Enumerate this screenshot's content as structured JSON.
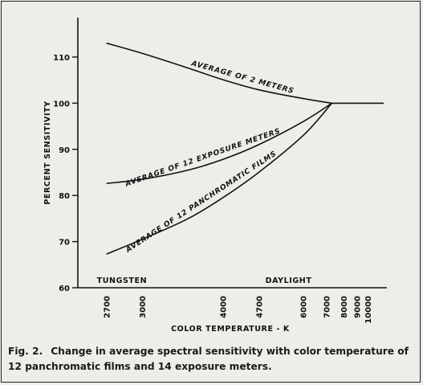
{
  "chart_data": {
    "type": "line",
    "ylabel": "PERCENT SENSITIVITY",
    "xlabel": "COLOR TEMPERATURE - K",
    "y_ticks": [
      "60",
      "70",
      "80",
      "90",
      "100",
      "110"
    ],
    "ylim": [
      60,
      114
    ],
    "x_scale": "reciprocal",
    "xlim": [
      2500,
      12000
    ],
    "x_ticks": [
      "2700",
      "3000",
      "4000",
      "4700",
      "6000",
      "7000",
      "8000",
      "9000",
      "10000"
    ],
    "x_annotations": [
      {
        "text": "TUNGSTEN",
        "x": 2700
      },
      {
        "text": "DAYLIGHT",
        "x": 5500
      }
    ],
    "series": [
      {
        "name": "AVERAGE OF 2 METERS",
        "points": [
          [
            2700,
            113
          ],
          [
            3000,
            110.8
          ],
          [
            3500,
            107.6
          ],
          [
            4000,
            105.1
          ],
          [
            4700,
            102.9
          ],
          [
            6000,
            101.0
          ],
          [
            7300,
            100
          ]
        ]
      },
      {
        "name": "AVERAGE OF 12 EXPOSURE METERS",
        "points": [
          [
            2700,
            82.6
          ],
          [
            3000,
            83.5
          ],
          [
            3500,
            85.5
          ],
          [
            4000,
            87.8
          ],
          [
            4700,
            91.0
          ],
          [
            6000,
            96.0
          ],
          [
            7300,
            100
          ]
        ]
      },
      {
        "name": "AVERAGE OF 12 PANCHROMATIC FILMS",
        "points": [
          [
            2700,
            67.3
          ],
          [
            3000,
            70.5
          ],
          [
            3500,
            75.0
          ],
          [
            4000,
            79.5
          ],
          [
            4700,
            85.0
          ],
          [
            6000,
            93.0
          ],
          [
            7300,
            100
          ]
        ]
      },
      {
        "name": "",
        "points": [
          [
            7300,
            100
          ],
          [
            12000,
            100
          ]
        ]
      }
    ]
  },
  "caption": {
    "fig": "Fig. 2.",
    "text": "Change in average spectral sensitivity with color temperature of 12 panchromatic films and 14 exposure meters."
  },
  "colors": {
    "ink": "#111111",
    "paper": "#eeedea"
  }
}
